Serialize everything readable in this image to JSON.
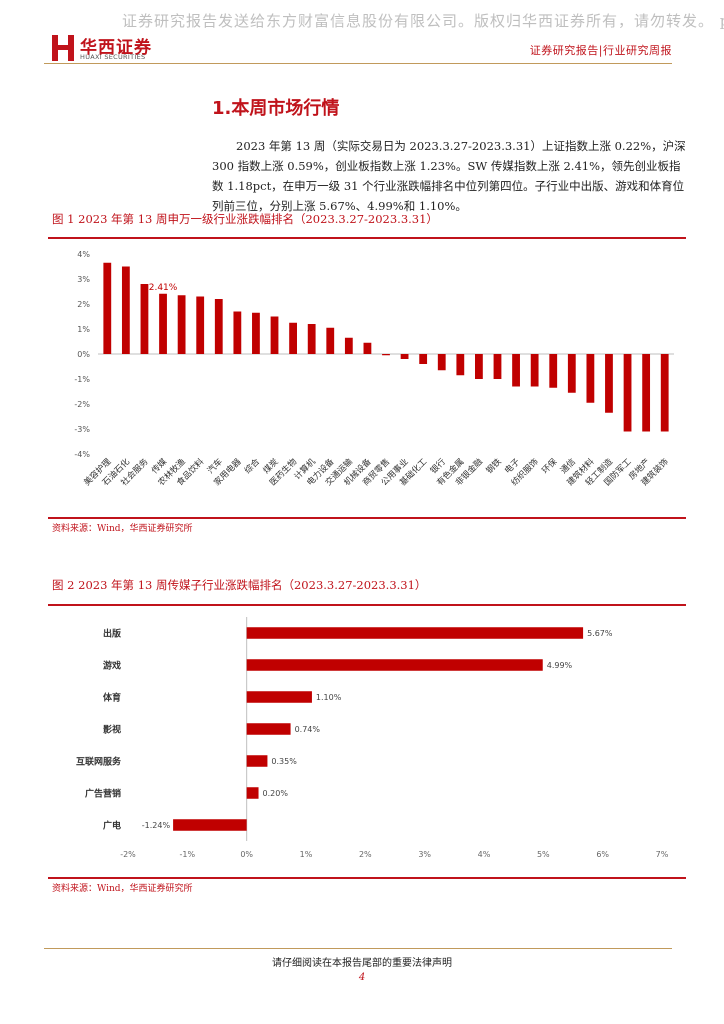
{
  "watermark": "证券研究报告发送给东方财富信息股份有限公司。版权归华西证券所有，请勿转发。 p",
  "header": {
    "brand_cn": "华西证券",
    "brand_en": "HUAXI SECURITIES",
    "report_type": "证券研究报告|行业研究周报"
  },
  "section": {
    "title": "1.本周市场行情",
    "body": "2023 年第 13 周（实际交易日为 2023.3.27-2023.3.31）上证指数上涨 0.22%，沪深 300 指数上涨 0.59%，创业板指数上涨 1.23%。SW 传媒指数上涨 2.41%，领先创业板指数 1.18pct，在申万一级 31 个行业涨跌幅排名中位列第四位。子行业中出版、游戏和体育位列前三位，分别上涨 5.67%、4.99%和 1.10%。"
  },
  "figures": [
    {
      "title": "图 1 2023 年第 13 周申万一级行业涨跌幅排名（2023.3.27-2023.3.31）",
      "source": "资料来源：Wind，华西证券研究所"
    },
    {
      "title": "图 2 2023 年第 13 周传媒子行业涨跌幅排名（2023.3.27-2023.3.31）",
      "source": "资料来源：Wind，华西证券研究所"
    }
  ],
  "colors": {
    "accent": "#c0131b",
    "bar": "#c00000",
    "rule_gold": "#c19a5b"
  },
  "chart_data": [
    {
      "type": "bar",
      "orientation": "vertical",
      "categories": [
        "美容护理",
        "石油石化",
        "社会服务",
        "传媒",
        "农林牧渔",
        "食品饮料",
        "汽车",
        "家用电器",
        "综合",
        "煤炭",
        "医药生物",
        "计算机",
        "电力设备",
        "交通运输",
        "机械设备",
        "商贸零售",
        "公用事业",
        "基础化工",
        "银行",
        "有色金属",
        "非银金融",
        "钢铁",
        "电子",
        "纺织服饰",
        "环保",
        "通信",
        "建筑材料",
        "轻工制造",
        "国防军工",
        "房地产",
        "建筑装饰"
      ],
      "values": [
        3.65,
        3.5,
        2.8,
        2.41,
        2.35,
        2.3,
        2.2,
        1.7,
        1.65,
        1.5,
        1.25,
        1.2,
        1.05,
        0.65,
        0.45,
        -0.05,
        -0.2,
        -0.4,
        -0.65,
        -0.85,
        -1.0,
        -1.0,
        -1.3,
        -1.3,
        -1.35,
        -1.55,
        -1.95,
        -2.35,
        -3.1,
        -3.1,
        -3.1
      ],
      "ylim": [
        -4,
        4
      ],
      "yticks": [
        "4%",
        "3%",
        "2%",
        "1%",
        "0%",
        "-1%",
        "-2%",
        "-3%",
        "-4%"
      ],
      "annotations": [
        {
          "category": "传媒",
          "label": "2.41%"
        }
      ],
      "grid": false,
      "legend": "none"
    },
    {
      "type": "bar",
      "orientation": "horizontal",
      "categories": [
        "出版",
        "游戏",
        "体育",
        "影视",
        "互联网服务",
        "广告营销",
        "广电"
      ],
      "values": [
        5.67,
        4.99,
        1.1,
        0.74,
        0.35,
        0.2,
        -1.24
      ],
      "data_labels": [
        "5.67%",
        "4.99%",
        "1.10%",
        "0.74%",
        "0.35%",
        "0.20%",
        "-1.24%"
      ],
      "xlim": [
        -2,
        7
      ],
      "xticks": [
        "-2%",
        "-1%",
        "0%",
        "1%",
        "2%",
        "3%",
        "4%",
        "5%",
        "6%",
        "7%"
      ],
      "grid": false,
      "legend": "none"
    }
  ],
  "footer": {
    "note": "请仔细阅读在本报告尾部的重要法律声明",
    "page": "4"
  }
}
